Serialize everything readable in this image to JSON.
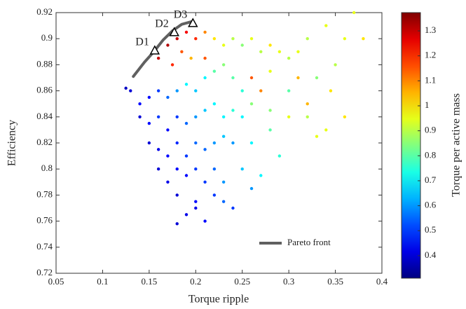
{
  "chart_data": {
    "type": "scatter",
    "xlabel": "Torque ripple",
    "ylabel": "Efficiency",
    "xlim": [
      0.05,
      0.4
    ],
    "ylim": [
      0.72,
      0.92
    ],
    "xticks": [
      0.05,
      0.1,
      0.15,
      0.2,
      0.25,
      0.3,
      0.35,
      0.4
    ],
    "yticks": [
      0.72,
      0.74,
      0.76,
      0.78,
      0.8,
      0.82,
      0.84,
      0.86,
      0.88,
      0.9,
      0.92
    ],
    "colormap": "jet",
    "colorbar": {
      "label": "Torque per active mass",
      "lim": [
        0.31,
        1.373
      ],
      "ticks": [
        0.4,
        0.5,
        0.6,
        0.7,
        0.8,
        0.9,
        1,
        1.1,
        1.2,
        1.3
      ]
    },
    "series": [
      {
        "x": [
          0.16,
          0.17,
          0.18,
          0.19,
          0.2,
          0.21,
          0.175,
          0.185,
          0.195,
          0.22,
          0.23,
          0.24,
          0.25,
          0.26,
          0.27,
          0.28,
          0.29,
          0.3,
          0.31,
          0.32,
          0.34,
          0.36,
          0.38,
          0.35,
          0.33,
          0.3,
          0.27,
          0.26,
          0.25,
          0.24,
          0.23,
          0.22,
          0.21,
          0.2,
          0.19,
          0.18,
          0.17,
          0.16,
          0.15,
          0.14,
          0.13,
          0.125,
          0.14,
          0.15,
          0.16,
          0.17,
          0.18,
          0.19,
          0.2,
          0.21,
          0.22,
          0.23,
          0.24,
          0.25,
          0.26,
          0.28,
          0.3,
          0.32,
          0.34,
          0.36,
          0.15,
          0.16,
          0.17,
          0.18,
          0.19,
          0.2,
          0.21,
          0.22,
          0.23,
          0.24,
          0.26,
          0.28,
          0.29,
          0.16,
          0.17,
          0.18,
          0.19,
          0.2,
          0.21,
          0.22,
          0.23,
          0.25,
          0.27,
          0.18,
          0.2,
          0.22,
          0.24,
          0.19,
          0.21,
          0.18,
          0.2,
          0.23,
          0.26,
          0.32,
          0.33,
          0.31,
          0.37,
          0.345,
          0.28,
          0.21
        ],
        "values": [
          0.885,
          0.895,
          0.9,
          0.905,
          0.9,
          0.905,
          0.88,
          0.89,
          0.885,
          0.9,
          0.895,
          0.9,
          0.895,
          0.9,
          0.89,
          0.895,
          0.89,
          0.885,
          0.89,
          0.9,
          0.91,
          0.9,
          0.9,
          0.88,
          0.87,
          0.86,
          0.86,
          0.87,
          0.86,
          0.87,
          0.88,
          0.875,
          0.87,
          0.86,
          0.865,
          0.86,
          0.855,
          0.86,
          0.855,
          0.85,
          0.86,
          0.862,
          0.84,
          0.835,
          0.84,
          0.83,
          0.84,
          0.835,
          0.84,
          0.845,
          0.85,
          0.84,
          0.845,
          0.84,
          0.85,
          0.845,
          0.84,
          0.84,
          0.83,
          0.84,
          0.82,
          0.815,
          0.81,
          0.82,
          0.81,
          0.82,
          0.815,
          0.82,
          0.825,
          0.82,
          0.82,
          0.83,
          0.81,
          0.8,
          0.79,
          0.8,
          0.795,
          0.8,
          0.79,
          0.8,
          0.79,
          0.8,
          0.795,
          0.78,
          0.775,
          0.78,
          0.77,
          0.765,
          0.76,
          0.758,
          0.77,
          0.775,
          0.785,
          0.85,
          0.825,
          0.87,
          0.92,
          0.86,
          0.875,
          0.885
        ],
        "color_values": [
          1.3,
          1.32,
          1.3,
          1.25,
          1.2,
          1.1,
          1.2,
          1.15,
          1.05,
          1.0,
          0.95,
          0.9,
          0.85,
          0.95,
          0.9,
          1.0,
          0.95,
          0.9,
          0.95,
          0.9,
          0.95,
          0.95,
          1.0,
          0.9,
          0.85,
          0.8,
          1.1,
          1.15,
          0.75,
          0.8,
          0.85,
          0.8,
          0.7,
          0.65,
          0.7,
          0.6,
          0.55,
          0.5,
          0.45,
          0.45,
          0.4,
          0.38,
          0.4,
          0.45,
          0.5,
          0.45,
          0.5,
          0.55,
          0.6,
          0.65,
          0.7,
          0.7,
          0.75,
          0.7,
          0.85,
          0.85,
          0.95,
          0.9,
          0.95,
          1.0,
          0.4,
          0.42,
          0.45,
          0.48,
          0.5,
          0.55,
          0.55,
          0.6,
          0.65,
          0.6,
          0.7,
          0.8,
          0.75,
          0.4,
          0.42,
          0.45,
          0.45,
          0.5,
          0.5,
          0.55,
          0.6,
          0.65,
          0.7,
          0.4,
          0.45,
          0.5,
          0.5,
          0.42,
          0.45,
          0.4,
          0.42,
          0.55,
          0.6,
          1.05,
          0.95,
          1.05,
          0.95,
          1.0,
          0.95,
          1.15
        ]
      }
    ],
    "pareto": {
      "name": "Pareto front",
      "color": "#606060",
      "x": [
        0.133,
        0.145,
        0.155,
        0.165,
        0.175,
        0.185,
        0.195
      ],
      "values": [
        0.871,
        0.882,
        0.89,
        0.899,
        0.906,
        0.911,
        0.913
      ]
    },
    "annotations": [
      {
        "text": "D1",
        "x": 0.156,
        "y": 0.891
      },
      {
        "text": "D2",
        "x": 0.177,
        "y": 0.905
      },
      {
        "text": "D3",
        "x": 0.197,
        "y": 0.912
      }
    ]
  }
}
